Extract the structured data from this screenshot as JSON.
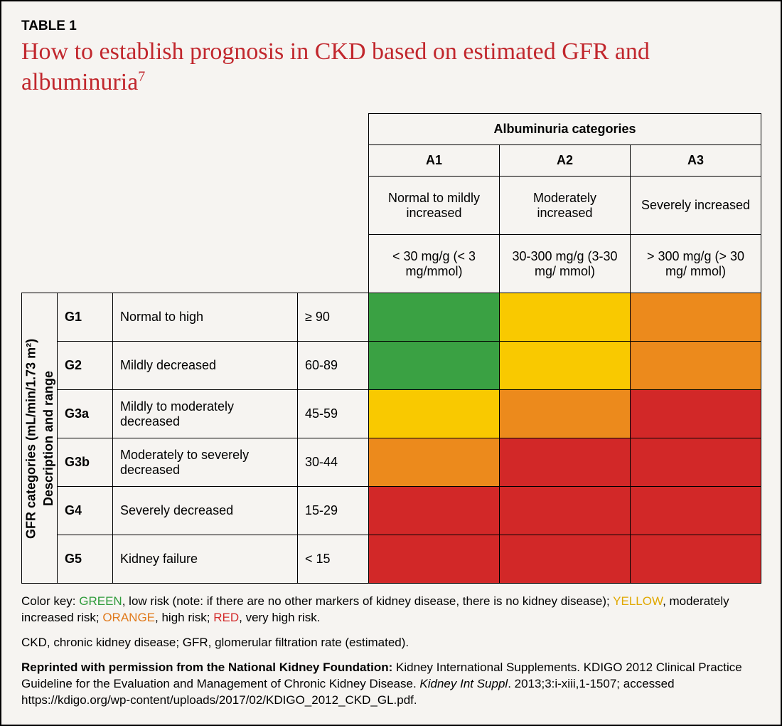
{
  "tableLabel": "TABLE 1",
  "title": "How to establish prognosis in CKD based on estimated GFR and albuminuria",
  "titleSup": "7",
  "colors": {
    "green": "#3aa143",
    "yellow": "#f9c900",
    "orange": "#ec8a1c",
    "red": "#d22828",
    "headerBg": "#f6f4f1",
    "border": "#000000",
    "titleColor": "#c1272d"
  },
  "albuminuria": {
    "groupHeader": "Albuminuria categories",
    "cols": [
      {
        "code": "A1",
        "desc": "Normal to mildly increased",
        "range": "< 30 mg/g (< 3 mg/mmol)"
      },
      {
        "code": "A2",
        "desc": "Moderately increased",
        "range": "30-300 mg/g (3-30 mg/ mmol)"
      },
      {
        "code": "A3",
        "desc": "Severely increased",
        "range": "> 300 mg/g (> 30 mg/ mmol)"
      }
    ]
  },
  "gfr": {
    "axisLabelLine1": "GFR categories (mL/min/1.73 m²)",
    "axisLabelLine2": "Description and range",
    "rows": [
      {
        "code": "G1",
        "desc": "Normal to high",
        "range": "≥ 90",
        "risk": [
          "green",
          "yellow",
          "orange"
        ]
      },
      {
        "code": "G2",
        "desc": "Mildly decreased",
        "range": "60-89",
        "risk": [
          "green",
          "yellow",
          "orange"
        ]
      },
      {
        "code": "G3a",
        "desc": "Mildly to moderately decreased",
        "range": "45-59",
        "risk": [
          "yellow",
          "orange",
          "red"
        ]
      },
      {
        "code": "G3b",
        "desc": "Moderately to severely decreased",
        "range": "30-44",
        "risk": [
          "orange",
          "red",
          "red"
        ]
      },
      {
        "code": "G4",
        "desc": "Severely decreased",
        "range": "15-29",
        "risk": [
          "red",
          "red",
          "red"
        ]
      },
      {
        "code": "G5",
        "desc": "Kidney failure",
        "range": "< 15",
        "risk": [
          "red",
          "red",
          "red"
        ]
      }
    ]
  },
  "colWidths": {
    "vlabel": 50,
    "code": 78,
    "desc": 260,
    "range": 100,
    "risk": 184
  },
  "rowHeights": {
    "header": 44,
    "desc": 82,
    "range": 82,
    "body": 68
  },
  "legend": {
    "prefix": "Color key: ",
    "items": [
      {
        "word": "GREEN",
        "cls": "ck-green",
        "text": ", low risk (note: if there are no other markers of kidney disease, there is no kidney disease); "
      },
      {
        "word": "YELLOW",
        "cls": "ck-yellow",
        "text": ", moderately increased risk; "
      },
      {
        "word": "ORANGE",
        "cls": "ck-orange",
        "text": ", high risk; "
      },
      {
        "word": "RED",
        "cls": "ck-red",
        "text": ", very high risk."
      }
    ]
  },
  "abbrev": "CKD, chronic kidney disease; GFR, glomerular filtration rate (estimated).",
  "citation": {
    "bold": "Reprinted with permission from the National Kidney Foundation: ",
    "plain1": "Kidney International Supplements. KDIGO 2012 Clinical Practice Guideline for the Evaluation and Management of Chronic Kidney Disease. ",
    "italic": "Kidney Int Suppl",
    "plain2": ". 2013;3:i-xiii,1-1507; accessed https://kdigo.org/wp-content/uploads/2017/02/KDIGO_2012_CKD_GL.pdf."
  }
}
